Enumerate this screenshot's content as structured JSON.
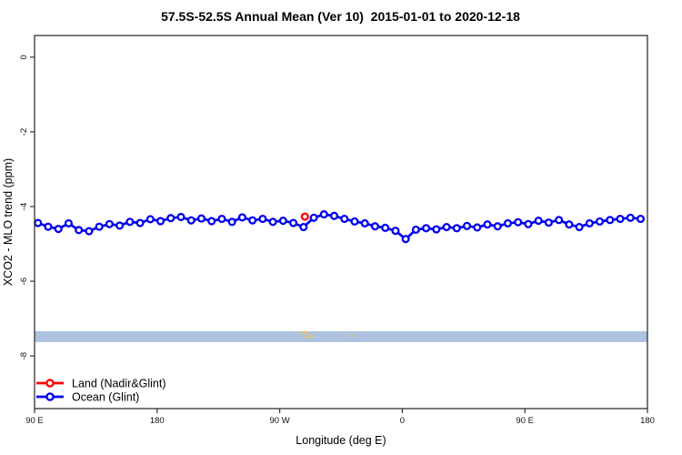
{
  "chart_data": {
    "type": "line",
    "title": "57.5S-52.5S Annual Mean (Ver 10)  2015-01-01 to 2020-12-18",
    "xlabel": "Longitude (deg E)",
    "ylabel": "XCO2 - MLO trend (ppm)",
    "grid": false,
    "x_axis": {
      "note": "longitude axis wraps: 90E eastward through 180, 90W, 0, 90E to 180",
      "lim_deg": [
        90,
        540
      ],
      "ticks": [
        {
          "deg": 90,
          "label": "90 E"
        },
        {
          "deg": 180,
          "label": "180"
        },
        {
          "deg": 270,
          "label": "90 W"
        },
        {
          "deg": 360,
          "label": "0"
        },
        {
          "deg": 450,
          "label": "90 E"
        },
        {
          "deg": 540,
          "label": "180"
        }
      ]
    },
    "y_axis": {
      "lim": [
        -9.41,
        0.58
      ],
      "ticks": [
        {
          "val": 0,
          "label": "0"
        },
        {
          "val": -2,
          "label": "-2"
        },
        {
          "val": -4,
          "label": "-4"
        },
        {
          "val": -6,
          "label": "-6"
        },
        {
          "val": -8,
          "label": "-8"
        }
      ]
    },
    "band": {
      "name": "reference-band",
      "from": -7.63,
      "to": -7.34,
      "color": "#ADC3DF"
    },
    "series": [
      {
        "name": "Land (Nadir&Glint)",
        "color": "#FF0000",
        "marker": "open-circle",
        "points": [
          {
            "deg": 288.5,
            "val": -4.27
          }
        ]
      },
      {
        "name": "Ocean (Glint)",
        "color": "#0000EE",
        "marker": "open-circle",
        "deg_start": 92.5,
        "deg_step": 7.5,
        "values": [
          -4.44,
          -4.54,
          -4.6,
          -4.45,
          -4.63,
          -4.66,
          -4.54,
          -4.47,
          -4.51,
          -4.41,
          -4.44,
          -4.34,
          -4.39,
          -4.31,
          -4.28,
          -4.37,
          -4.32,
          -4.39,
          -4.33,
          -4.41,
          -4.29,
          -4.37,
          -4.33,
          -4.41,
          -4.38,
          -4.44,
          -4.55,
          -4.3,
          -4.21,
          -4.25,
          -4.33,
          -4.4,
          -4.45,
          -4.53,
          -4.57,
          -4.65,
          -4.87,
          -4.62,
          -4.58,
          -4.61,
          -4.55,
          -4.58,
          -4.52,
          -4.56,
          -4.48,
          -4.53,
          -4.45,
          -4.42,
          -4.47,
          -4.38,
          -4.43,
          -4.36,
          -4.48,
          -4.55,
          -4.45,
          -4.4,
          -4.36,
          -4.33,
          -4.3,
          -4.33
        ]
      }
    ],
    "aux_points": {
      "name": "minor-yellow-points",
      "color": "#F2C45F",
      "points": [
        {
          "deg": 285.4,
          "val": -7.39
        },
        {
          "deg": 288.1,
          "val": -7.36
        },
        {
          "deg": 288.8,
          "val": -7.51
        },
        {
          "deg": 290.1,
          "val": -7.41
        },
        {
          "deg": 292.1,
          "val": -7.46
        },
        {
          "deg": 294.1,
          "val": -7.49
        },
        {
          "deg": 322.8,
          "val": -7.46
        }
      ]
    },
    "legend": {
      "position": "bottom-left",
      "entries": [
        {
          "label": "Land (Nadir&Glint)",
          "color": "#FF0000"
        },
        {
          "label": "Ocean (Glint)",
          "color": "#0000EE"
        }
      ]
    },
    "colors": {
      "land": "#FF0000",
      "ocean": "#0000EE",
      "band": "#ADC3DF",
      "aux": "#F2C45F",
      "axis": "#333333"
    }
  }
}
